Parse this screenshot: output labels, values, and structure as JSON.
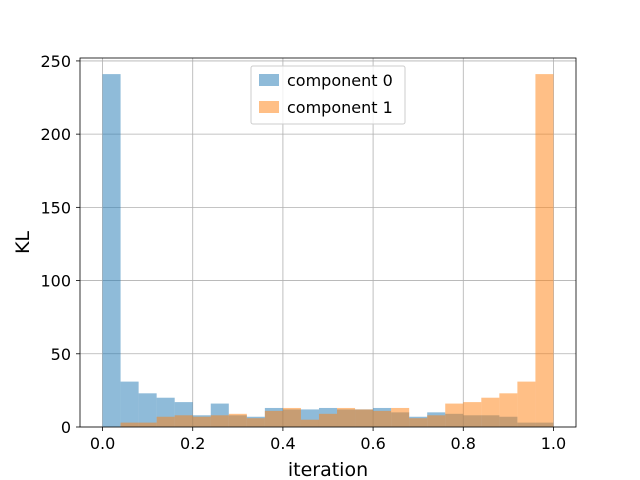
{
  "chart_data": {
    "type": "bar",
    "xlabel": "iteration",
    "ylabel": "KL",
    "xlim": [
      -0.05,
      1.05
    ],
    "ylim": [
      0,
      252
    ],
    "grid": true,
    "legend_position": "top-center",
    "x_ticks": [
      0.0,
      0.2,
      0.4,
      0.6,
      0.8,
      1.0
    ],
    "x_tick_labels": [
      "0.0",
      "0.2",
      "0.4",
      "0.6",
      "0.8",
      "1.0"
    ],
    "y_ticks": [
      0,
      50,
      100,
      150,
      200,
      250
    ],
    "y_tick_labels": [
      "0",
      "50",
      "100",
      "150",
      "200",
      "250"
    ],
    "bin_edges": [
      0.0,
      0.04,
      0.08,
      0.12,
      0.16,
      0.2,
      0.24,
      0.28,
      0.32,
      0.36,
      0.4,
      0.44,
      0.48,
      0.52,
      0.56,
      0.6,
      0.64,
      0.68,
      0.72,
      0.76,
      0.8,
      0.84,
      0.88,
      0.92,
      0.96,
      1.0
    ],
    "series": [
      {
        "name": "component 0",
        "color": "#1f77b4",
        "alpha": 0.5,
        "values": [
          241,
          31,
          23,
          20,
          17,
          8,
          16,
          8,
          7,
          13,
          12,
          12,
          13,
          12,
          12,
          13,
          10,
          7,
          10,
          9,
          8,
          8,
          7,
          3,
          3
        ]
      },
      {
        "name": "component 1",
        "color": "#ff7f0e",
        "alpha": 0.5,
        "values": [
          0,
          3,
          3,
          7,
          8,
          7,
          8,
          9,
          6,
          11,
          13,
          5,
          9,
          13,
          12,
          11,
          13,
          6,
          8,
          16,
          17,
          20,
          23,
          31,
          241
        ]
      }
    ]
  }
}
